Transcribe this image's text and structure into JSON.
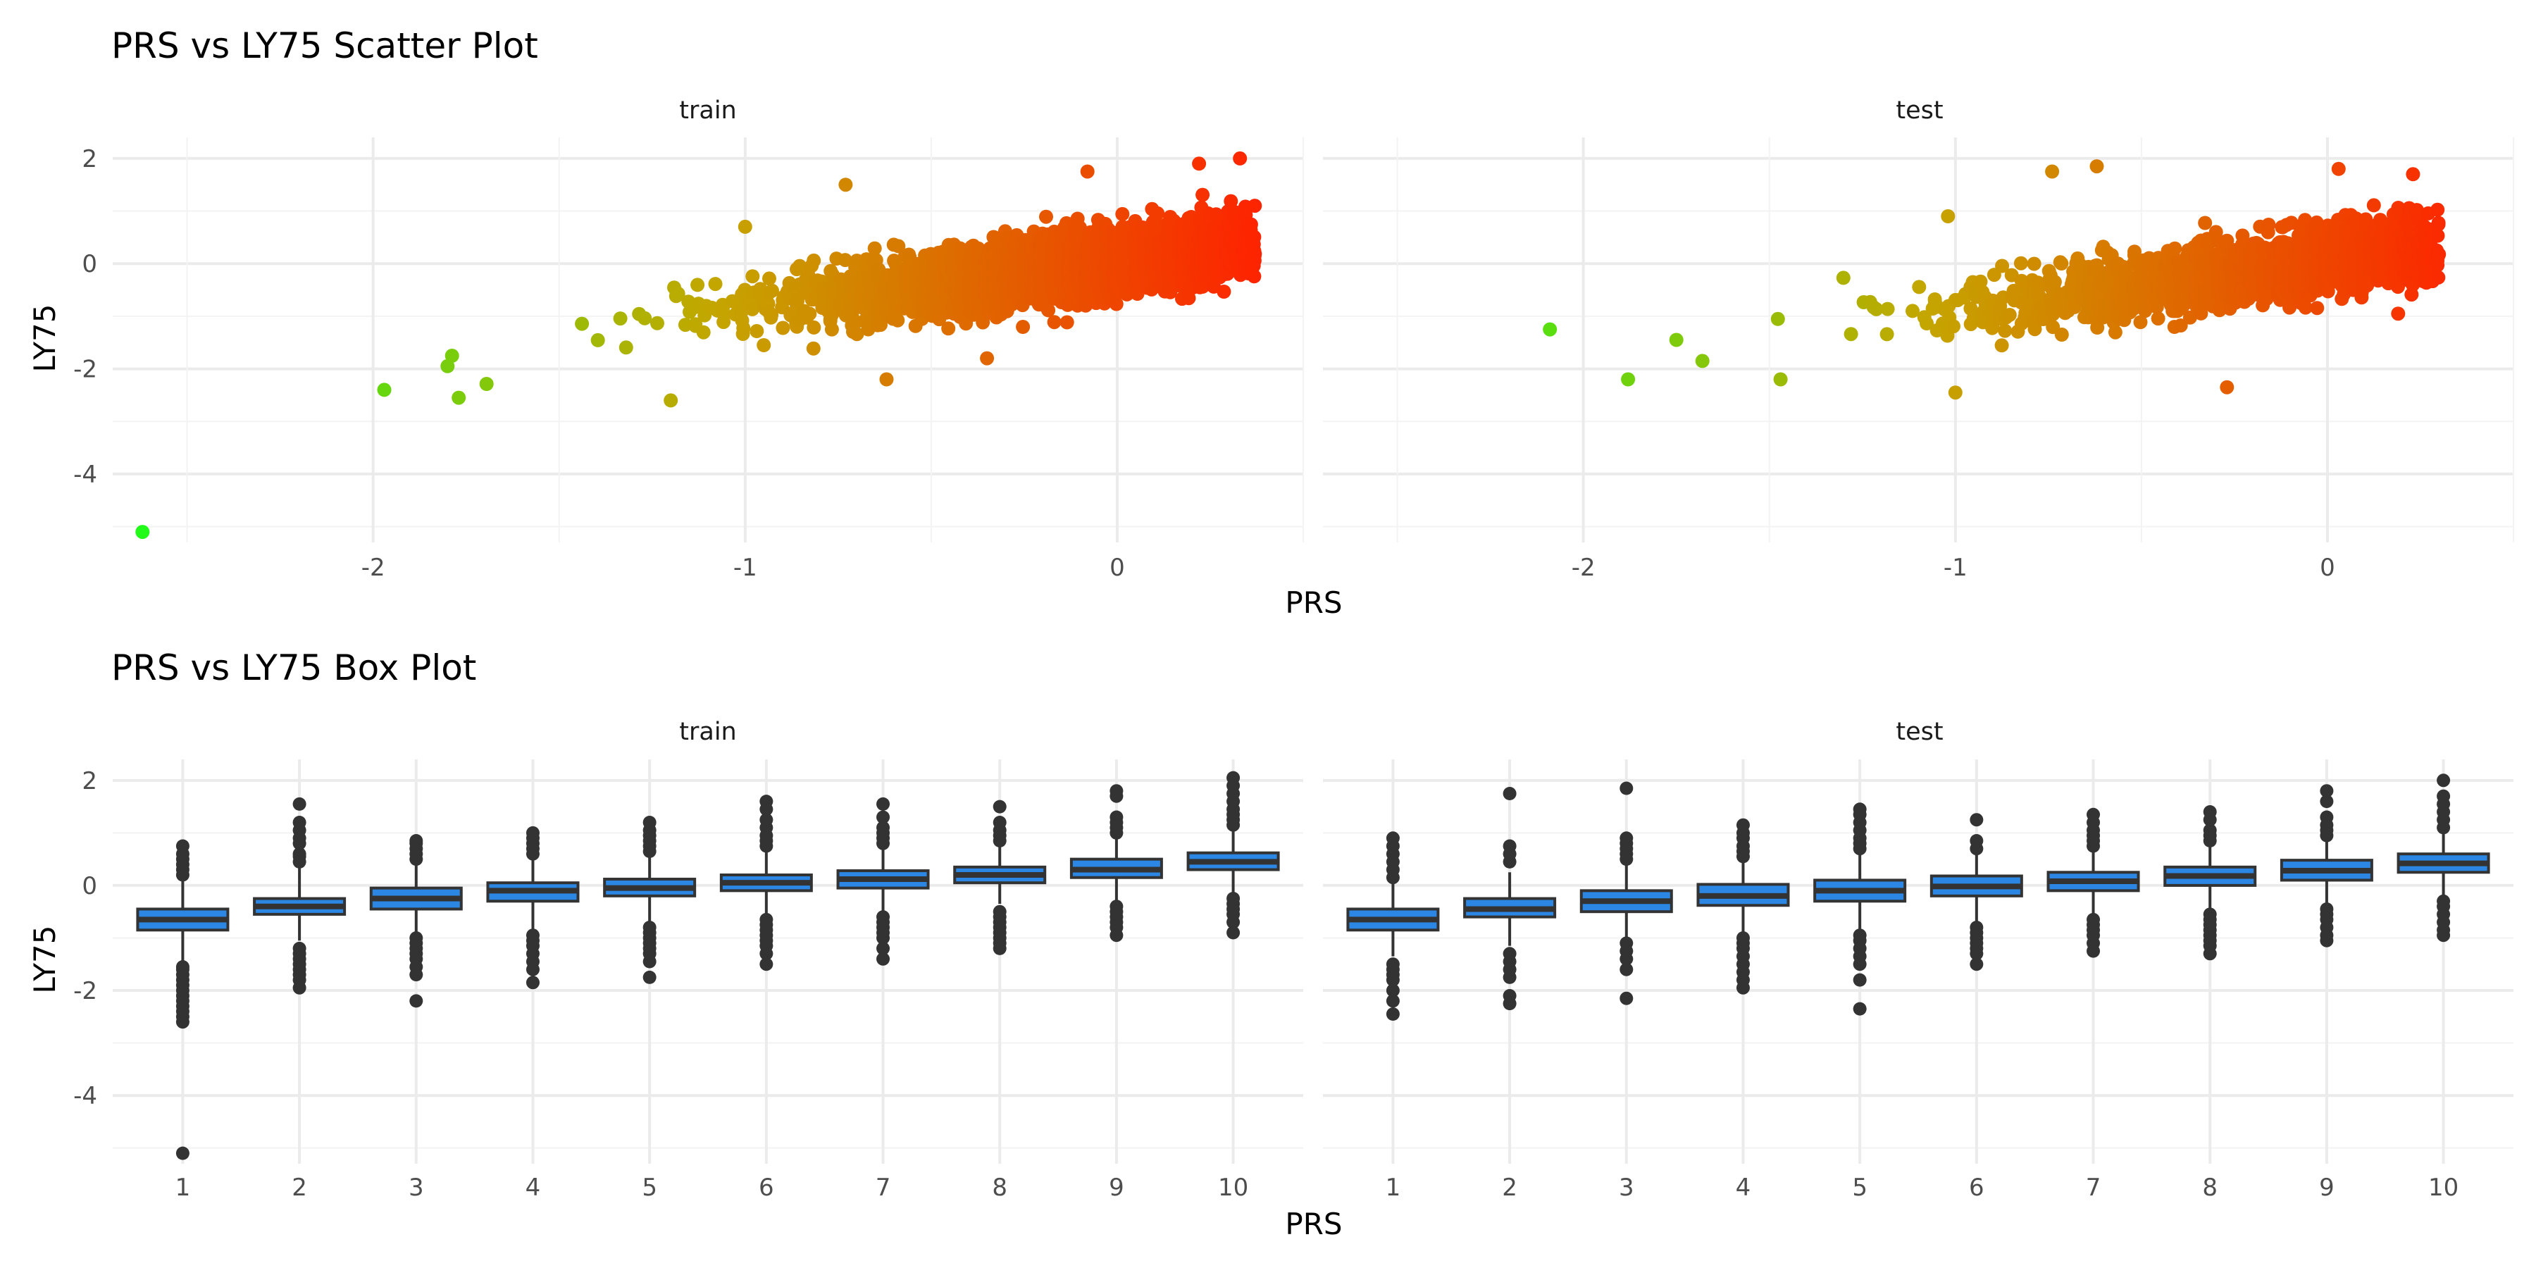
{
  "chart_data": [
    {
      "type": "scatter",
      "title": "PRS vs LY75 Scatter Plot",
      "xlabel": "PRS",
      "ylabel": "LY75",
      "facets": [
        "train",
        "test"
      ],
      "xlim": [
        -2.7,
        0.5
      ],
      "ylim": [
        -5.3,
        2.4
      ],
      "x_ticks": [
        "-2",
        "-1",
        "0"
      ],
      "y_ticks": [
        "2",
        "0",
        "-2",
        "-4"
      ],
      "x_tick_values": [
        -2,
        -1,
        0
      ],
      "y_tick_values": [
        2,
        0,
        -2,
        -4
      ],
      "grid": true,
      "color_scale": {
        "low": "#1aff1a",
        "mid": "#c4a600",
        "high": "#ff2000",
        "variable": "PRS"
      },
      "trend": {
        "slope": 0.85,
        "intercept": 0.05,
        "spread_sd": 0.32
      },
      "series": [
        {
          "name": "train",
          "x_range": [
            -1.85,
            0.37
          ],
          "outliers": [
            {
              "x": -2.62,
              "y": -5.1
            },
            {
              "x": -1.97,
              "y": -2.4
            },
            {
              "x": -1.77,
              "y": -2.55
            },
            {
              "x": -1.8,
              "y": -1.95
            },
            {
              "x": -1.2,
              "y": -2.6
            },
            {
              "x": -0.73,
              "y": 1.5
            },
            {
              "x": -0.62,
              "y": -2.2
            },
            {
              "x": 0.33,
              "y": 2.0
            },
            {
              "x": 0.22,
              "y": 1.9
            },
            {
              "x": 0.37,
              "y": 1.1
            },
            {
              "x": -0.08,
              "y": 1.75
            },
            {
              "x": -0.35,
              "y": -1.8
            },
            {
              "x": -1.0,
              "y": 0.7
            }
          ]
        },
        {
          "name": "test",
          "x_range": [
            -1.5,
            0.3
          ],
          "outliers": [
            {
              "x": -2.09,
              "y": -1.25
            },
            {
              "x": -1.88,
              "y": -2.2
            },
            {
              "x": -1.75,
              "y": -1.45
            },
            {
              "x": -1.68,
              "y": -1.85
            },
            {
              "x": -1.47,
              "y": -2.2
            },
            {
              "x": -1.0,
              "y": -2.45
            },
            {
              "x": -0.62,
              "y": 1.85
            },
            {
              "x": -0.74,
              "y": 1.75
            },
            {
              "x": -0.27,
              "y": -2.35
            },
            {
              "x": 0.23,
              "y": 1.7
            },
            {
              "x": 0.28,
              "y": 0.6
            },
            {
              "x": 0.03,
              "y": 1.8
            },
            {
              "x": 0.19,
              "y": -0.95
            },
            {
              "x": -1.02,
              "y": 0.9
            }
          ]
        }
      ]
    },
    {
      "type": "box",
      "title": "PRS vs LY75 Box Plot",
      "xlabel": "PRS",
      "ylabel": "LY75",
      "facets": [
        "train",
        "test"
      ],
      "categories": [
        "1",
        "2",
        "3",
        "4",
        "5",
        "6",
        "7",
        "8",
        "9",
        "10"
      ],
      "ylim": [
        -5.3,
        2.4
      ],
      "y_ticks": [
        "2",
        "0",
        "-2",
        "-4"
      ],
      "y_tick_values": [
        2,
        0,
        -2,
        -4
      ],
      "grid": true,
      "box_fill": "#2b87e3",
      "box_line": "#333333",
      "series": [
        {
          "name": "train",
          "boxes": [
            {
              "q1": -0.85,
              "median": -0.65,
              "q3": -0.45,
              "lower": -1.45,
              "upper": 0.1,
              "outliers": [
                -1.55,
                -1.6,
                -1.7,
                -1.8,
                -1.9,
                -2.0,
                -2.1,
                -2.2,
                -2.3,
                -2.4,
                -2.5,
                -2.6,
                -5.1,
                0.2,
                0.3,
                0.4,
                0.5,
                0.6,
                0.75
              ]
            },
            {
              "q1": -0.55,
              "median": -0.4,
              "q3": -0.25,
              "lower": -1.05,
              "upper": 0.35,
              "outliers": [
                -1.2,
                -1.3,
                -1.4,
                -1.5,
                -1.6,
                -1.7,
                -1.8,
                -1.95,
                0.45,
                0.55,
                0.6,
                0.8,
                0.9,
                1.05,
                1.2,
                1.55
              ]
            },
            {
              "q1": -0.45,
              "median": -0.25,
              "q3": -0.05,
              "lower": -0.95,
              "upper": 0.45,
              "outliers": [
                -1.0,
                -1.1,
                -1.2,
                -1.3,
                -1.4,
                -1.55,
                -1.7,
                -2.2,
                0.5,
                0.6,
                0.7,
                0.8,
                0.85
              ]
            },
            {
              "q1": -0.3,
              "median": -0.1,
              "q3": 0.05,
              "lower": -0.85,
              "upper": 0.5,
              "outliers": [
                -0.95,
                -1.05,
                -1.15,
                -1.3,
                -1.45,
                -1.6,
                -1.85,
                0.6,
                0.7,
                0.8,
                0.9,
                1.0
              ]
            },
            {
              "q1": -0.2,
              "median": -0.05,
              "q3": 0.12,
              "lower": -0.7,
              "upper": 0.55,
              "outliers": [
                -0.8,
                -0.9,
                -1.0,
                -1.1,
                -1.2,
                -1.3,
                -1.45,
                -1.75,
                0.65,
                0.75,
                0.85,
                0.95,
                1.05,
                1.2
              ]
            },
            {
              "q1": -0.1,
              "median": 0.05,
              "q3": 0.2,
              "lower": -0.55,
              "upper": 0.65,
              "outliers": [
                -0.65,
                -0.75,
                -0.85,
                -0.95,
                -1.05,
                -1.15,
                -1.3,
                -1.5,
                0.75,
                0.85,
                0.95,
                1.1,
                1.25,
                1.45,
                1.6
              ]
            },
            {
              "q1": -0.05,
              "median": 0.12,
              "q3": 0.28,
              "lower": -0.5,
              "upper": 0.7,
              "outliers": [
                -0.6,
                -0.7,
                -0.8,
                -0.9,
                -1.0,
                -1.2,
                -1.4,
                0.8,
                0.9,
                1.0,
                1.1,
                1.3,
                1.55
              ]
            },
            {
              "q1": 0.05,
              "median": 0.2,
              "q3": 0.35,
              "lower": -0.35,
              "upper": 0.75,
              "outliers": [
                -0.5,
                -0.6,
                -0.7,
                -0.8,
                -0.9,
                -1.0,
                -1.1,
                -1.2,
                0.85,
                0.95,
                1.05,
                1.2,
                1.5
              ]
            },
            {
              "q1": 0.15,
              "median": 0.3,
              "q3": 0.5,
              "lower": -0.3,
              "upper": 0.9,
              "outliers": [
                -0.4,
                -0.5,
                -0.6,
                -0.7,
                -0.8,
                -0.95,
                1.0,
                1.1,
                1.2,
                1.3,
                1.7,
                1.8
              ]
            },
            {
              "q1": 0.3,
              "median": 0.45,
              "q3": 0.62,
              "lower": -0.15,
              "upper": 1.05,
              "outliers": [
                -0.25,
                -0.35,
                -0.45,
                -0.55,
                -0.7,
                -0.9,
                1.15,
                1.25,
                1.35,
                1.45,
                1.6,
                1.75,
                1.9,
                2.05
              ]
            }
          ]
        },
        {
          "name": "test",
          "boxes": [
            {
              "q1": -0.85,
              "median": -0.65,
              "q3": -0.45,
              "lower": -1.35,
              "upper": 0.05,
              "outliers": [
                -1.5,
                -1.6,
                -1.7,
                -1.8,
                -2.0,
                -2.2,
                -2.45,
                0.15,
                0.3,
                0.45,
                0.6,
                0.75,
                0.9
              ]
            },
            {
              "q1": -0.6,
              "median": -0.45,
              "q3": -0.25,
              "lower": -1.15,
              "upper": 0.25,
              "outliers": [
                -1.3,
                -1.45,
                -1.6,
                -1.75,
                -2.1,
                -2.25,
                0.45,
                0.6,
                0.75,
                1.75
              ]
            },
            {
              "q1": -0.5,
              "median": -0.3,
              "q3": -0.1,
              "lower": -1.0,
              "upper": 0.4,
              "outliers": [
                -1.1,
                -1.25,
                -1.4,
                -1.6,
                -2.15,
                0.5,
                0.6,
                0.7,
                0.8,
                0.9,
                1.85
              ]
            },
            {
              "q1": -0.38,
              "median": -0.2,
              "q3": 0.02,
              "lower": -0.9,
              "upper": 0.45,
              "outliers": [
                -1.0,
                -1.1,
                -1.2,
                -1.35,
                -1.5,
                -1.65,
                -1.8,
                -1.95,
                0.55,
                0.65,
                0.75,
                0.9,
                1.0,
                1.15
              ]
            },
            {
              "q1": -0.3,
              "median": -0.1,
              "q3": 0.1,
              "lower": -0.85,
              "upper": 0.6,
              "outliers": [
                -0.95,
                -1.05,
                -1.2,
                -1.35,
                -1.5,
                -1.8,
                -2.35,
                0.7,
                0.8,
                0.9,
                1.05,
                1.2,
                1.35,
                1.45
              ]
            },
            {
              "q1": -0.2,
              "median": -0.02,
              "q3": 0.18,
              "lower": -0.7,
              "upper": 0.6,
              "outliers": [
                -0.8,
                -0.9,
                -1.0,
                -1.1,
                -1.2,
                -1.3,
                -1.5,
                0.7,
                0.85,
                1.25
              ]
            },
            {
              "q1": -0.1,
              "median": 0.08,
              "q3": 0.25,
              "lower": -0.55,
              "upper": 0.65,
              "outliers": [
                -0.65,
                -0.75,
                -0.85,
                -0.95,
                -1.1,
                -1.25,
                0.75,
                0.85,
                0.95,
                1.05,
                1.2,
                1.35
              ]
            },
            {
              "q1": 0.0,
              "median": 0.18,
              "q3": 0.35,
              "lower": -0.45,
              "upper": 0.75,
              "outliers": [
                -0.55,
                -0.65,
                -0.75,
                -0.85,
                -0.95,
                -1.05,
                -1.15,
                -1.3,
                0.85,
                0.95,
                1.05,
                1.25,
                1.4
              ]
            },
            {
              "q1": 0.1,
              "median": 0.28,
              "q3": 0.48,
              "lower": -0.35,
              "upper": 0.85,
              "outliers": [
                -0.45,
                -0.55,
                -0.65,
                -0.8,
                -0.95,
                -1.05,
                0.95,
                1.05,
                1.15,
                1.3,
                1.6,
                1.8
              ]
            },
            {
              "q1": 0.25,
              "median": 0.42,
              "q3": 0.6,
              "lower": -0.2,
              "upper": 1.0,
              "outliers": [
                -0.3,
                -0.4,
                -0.55,
                -0.7,
                -0.85,
                -0.95,
                1.1,
                1.25,
                1.4,
                1.55,
                1.7,
                2.0
              ]
            }
          ]
        }
      ]
    }
  ]
}
